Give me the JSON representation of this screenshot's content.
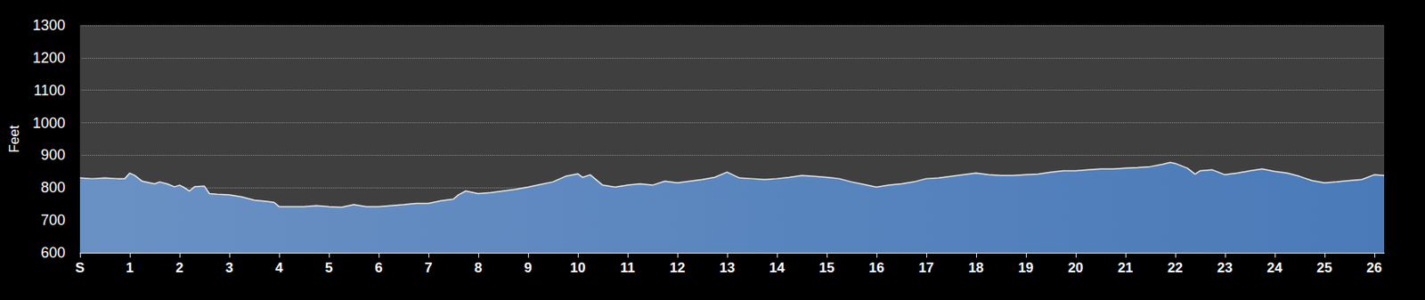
{
  "chart_data": {
    "type": "area",
    "y_label": "Feet",
    "color": "#4a7ab8",
    "grid": true,
    "xlim": [
      0,
      26.2
    ],
    "xticks": [
      {
        "value": 0,
        "label": "S"
      },
      1,
      2,
      3,
      4,
      5,
      6,
      7,
      8,
      9,
      10,
      11,
      12,
      13,
      14,
      15,
      16,
      17,
      18,
      19,
      20,
      21,
      22,
      23,
      24,
      25,
      26
    ],
    "ylim": [
      600,
      1300
    ],
    "yticks": [
      600,
      700,
      800,
      900,
      1000,
      1100,
      1200,
      1300
    ],
    "x": [
      0,
      0.25,
      0.5,
      0.75,
      0.9,
      1.0,
      1.1,
      1.25,
      1.5,
      1.6,
      1.75,
      1.9,
      2.0,
      2.1,
      2.2,
      2.3,
      2.5,
      2.6,
      2.75,
      3.0,
      3.25,
      3.5,
      3.75,
      3.9,
      4.0,
      4.25,
      4.5,
      4.75,
      5.0,
      5.25,
      5.5,
      5.75,
      6.0,
      6.25,
      6.5,
      6.75,
      7.0,
      7.25,
      7.5,
      7.6,
      7.75,
      8.0,
      8.25,
      8.5,
      8.75,
      9.0,
      9.25,
      9.5,
      9.75,
      10.0,
      10.1,
      10.25,
      10.5,
      10.75,
      11.0,
      11.25,
      11.5,
      11.75,
      12.0,
      12.25,
      12.5,
      12.75,
      13.0,
      13.25,
      13.5,
      13.75,
      14.0,
      14.25,
      14.5,
      14.75,
      15.0,
      15.25,
      15.5,
      15.75,
      16.0,
      16.25,
      16.5,
      16.75,
      17.0,
      17.25,
      17.5,
      17.75,
      18.0,
      18.25,
      18.5,
      18.75,
      19.0,
      19.25,
      19.5,
      19.75,
      20.0,
      20.25,
      20.5,
      20.75,
      21.0,
      21.25,
      21.5,
      21.75,
      21.9,
      22.0,
      22.25,
      22.4,
      22.5,
      22.75,
      23.0,
      23.25,
      23.5,
      23.75,
      24.0,
      24.25,
      24.5,
      24.75,
      25.0,
      25.25,
      25.5,
      25.75,
      26.0,
      26.2
    ],
    "values": [
      830,
      828,
      830,
      828,
      828,
      845,
      838,
      820,
      812,
      818,
      812,
      803,
      808,
      800,
      790,
      803,
      805,
      782,
      780,
      778,
      772,
      762,
      758,
      755,
      742,
      742,
      742,
      745,
      742,
      740,
      748,
      742,
      742,
      745,
      748,
      752,
      752,
      760,
      765,
      778,
      790,
      782,
      785,
      790,
      795,
      802,
      810,
      818,
      835,
      843,
      832,
      840,
      808,
      802,
      808,
      812,
      808,
      820,
      815,
      820,
      825,
      832,
      848,
      830,
      828,
      825,
      828,
      832,
      838,
      835,
      832,
      828,
      818,
      810,
      802,
      808,
      812,
      818,
      828,
      830,
      835,
      840,
      845,
      840,
      838,
      838,
      840,
      842,
      848,
      852,
      852,
      855,
      858,
      858,
      860,
      862,
      865,
      872,
      878,
      875,
      860,
      842,
      852,
      855,
      840,
      845,
      852,
      858,
      850,
      845,
      835,
      822,
      815,
      818,
      822,
      825,
      840,
      838
    ]
  }
}
